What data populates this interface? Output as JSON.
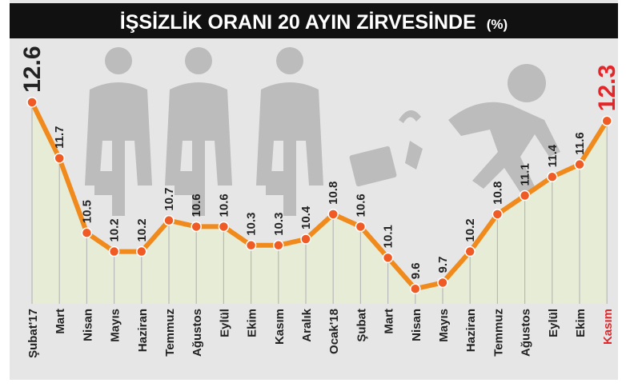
{
  "header": {
    "title": "İŞSİZLİK ORANI 20 AYIN ZİRVESİNDE",
    "unit": "(%)"
  },
  "colors": {
    "background": "#e6e6e6",
    "title_bar": "#111111",
    "line": "#f08a1c",
    "marker": "#f05a24",
    "area": "#e7ecd6",
    "dropline": "#b9b9b9",
    "silhouette": "#bcbcbc",
    "label": "#222222",
    "highlight": "#e3262a"
  },
  "chart_data": {
    "type": "line",
    "title": "İŞSİZLİK ORANI 20 AYIN ZİRVESİNDE",
    "unit": "(%)",
    "categories": [
      "Şubat'17",
      "Mart",
      "Nisan",
      "Mayıs",
      "Haziran",
      "Temmuz",
      "Ağustos",
      "Eylül",
      "Ekim",
      "Kasım",
      "Aralık",
      "Ocak'18",
      "Şubat",
      "Mart",
      "Nisan",
      "Mayıs",
      "Haziran",
      "Temmuz",
      "Ağustos",
      "Eylül",
      "Ekim",
      "Kasım"
    ],
    "values": [
      12.6,
      11.7,
      10.5,
      10.2,
      10.2,
      10.7,
      10.6,
      10.6,
      10.3,
      10.3,
      10.4,
      10.8,
      10.6,
      10.1,
      9.6,
      9.7,
      10.2,
      10.8,
      11.1,
      11.4,
      11.6,
      12.3
    ],
    "value_labels": [
      "12.6",
      "11.7",
      "10.5",
      "10.2",
      "10.2",
      "10.7",
      "10.6",
      "10.6",
      "10.3",
      "10.3",
      "10.4",
      "10.8",
      "10.6",
      "10.1",
      "9.6",
      "9.7",
      "10.2",
      "10.8",
      "11.1",
      "11.4",
      "11.6",
      "12.3"
    ],
    "highlight_index": 21,
    "ylim": [
      9.5,
      12.65
    ],
    "grid": false,
    "legend": "none",
    "xlabel": "",
    "ylabel": ""
  }
}
